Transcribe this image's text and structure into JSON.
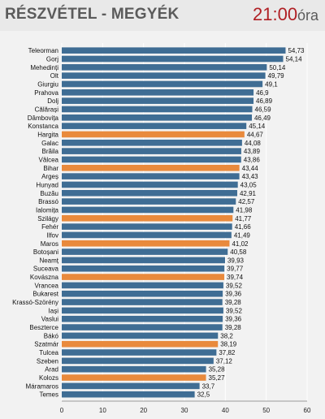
{
  "header": {
    "title": "RÉSZVÉTEL - MEGYÉK",
    "time": "21:00",
    "time_unit": "óra"
  },
  "colors": {
    "default_bar": "#3f6d94",
    "highlight_bar": "#e98a3c",
    "time": "#b01f24",
    "header_bg": "#e9e9e9",
    "plot_bg": "#f2f2f2"
  },
  "chart_data": {
    "type": "bar",
    "orientation": "horizontal",
    "title": "RÉSZVÉTEL - MEGYÉK",
    "xlim": [
      0,
      60
    ],
    "xticks": [
      0,
      10,
      20,
      30,
      40,
      50,
      60
    ],
    "xtick_labels": [
      "0",
      "10",
      "20",
      "30",
      "40",
      "50",
      "60"
    ],
    "categories": [
      "Teleorman",
      "Gorj",
      "Mehedinți",
      "Olt",
      "Giurgiu",
      "Prahova",
      "Dolj",
      "Călărași",
      "Dâmbovița",
      "Konstanca",
      "Hargita",
      "Galac",
      "Brăila",
      "Vâlcea",
      "Bihar",
      "Argeș",
      "Hunyad",
      "Buzău",
      "Brassó",
      "Ialomița",
      "Szilágy",
      "Fehér",
      "Ilfov",
      "Maros",
      "Botoșani",
      "Neamț",
      "Suceava",
      "Kovászna",
      "Vrancea",
      "Bukarest",
      "Krassó-Szörény",
      "Iași",
      "Vaslui",
      "Beszterce",
      "Bákó",
      "Szatmár",
      "Tulcea",
      "Szeben",
      "Arad",
      "Kolozs",
      "Máramaros",
      "Temes"
    ],
    "values": [
      54.73,
      54.14,
      50.14,
      49.79,
      49.1,
      46.9,
      46.89,
      46.59,
      46.49,
      45.14,
      44.67,
      44.08,
      43.89,
      43.86,
      43.44,
      43.43,
      43.05,
      42.91,
      42.57,
      41.98,
      41.77,
      41.66,
      41.49,
      41.02,
      40.58,
      39.93,
      39.77,
      39.74,
      39.52,
      39.36,
      39.28,
      39.52,
      39.36,
      39.28,
      38.2,
      38.19,
      37.82,
      37.12,
      35.28,
      35.27,
      33.7,
      32.5
    ],
    "value_labels": [
      "54,73",
      "54,14",
      "50,14",
      "49,79",
      "49,1",
      "46,9",
      "46,89",
      "46,59",
      "46,49",
      "45,14",
      "44,67",
      "44,08",
      "43,89",
      "43,86",
      "43,44",
      "43,43",
      "43,05",
      "42,91",
      "42,57",
      "41,98",
      "41,77",
      "41,66",
      "41,49",
      "41,02",
      "40,58",
      "39,93",
      "39,77",
      "39,74",
      "39,52",
      "39,36",
      "39,28",
      "39,52",
      "39,36",
      "39,28",
      "38,2",
      "38,19",
      "37,82",
      "37,12",
      "35,28",
      "35,27",
      "33,7",
      "32,5"
    ],
    "highlighted": [
      "Hargita",
      "Bihar",
      "Szilágy",
      "Maros",
      "Kovászna",
      "Szatmár",
      "Kolozs"
    ],
    "grid": true
  }
}
